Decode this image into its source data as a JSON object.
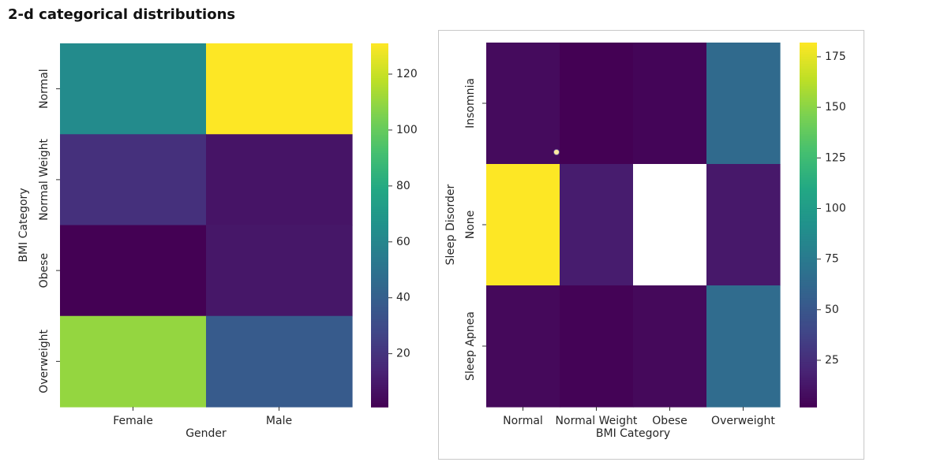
{
  "header": {
    "title": "2-d categorical distributions"
  },
  "chart_data": [
    {
      "type": "heatmap",
      "x_categories": [
        "Female",
        "Male"
      ],
      "y_categories": [
        "Normal",
        "Normal Weight",
        "Obese",
        "Overweight"
      ],
      "values": [
        [
          63,
          131
        ],
        [
          19,
          8
        ],
        [
          1,
          9
        ],
        [
          110,
          38
        ]
      ],
      "xlabel": "Gender",
      "ylabel": "BMI Category",
      "colorbar": {
        "range": [
          1,
          131
        ],
        "ticks": [
          20,
          40,
          60,
          80,
          100,
          120
        ]
      },
      "colormap": "viridis"
    },
    {
      "type": "heatmap",
      "x_categories": [
        "Normal",
        "Normal Weight",
        "Obese",
        "Overweight"
      ],
      "y_categories": [
        "Insomnia",
        "None",
        "Sleep Apnea"
      ],
      "values": [
        [
          7,
          2,
          4,
          64
        ],
        [
          182,
          16,
          null,
          14
        ],
        [
          6,
          3,
          6,
          65
        ]
      ],
      "xlabel": "BMI Category",
      "ylabel": "Sleep Disorder",
      "colorbar": {
        "range": [
          2,
          182
        ],
        "ticks": [
          25,
          50,
          75,
          100,
          125,
          150,
          175
        ]
      },
      "colormap": "viridis"
    }
  ]
}
